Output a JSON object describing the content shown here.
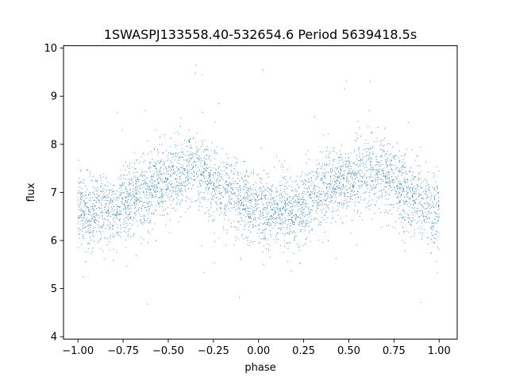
{
  "chart_data": {
    "type": "scatter",
    "title": "1SWASPJ133558.40-532654.6 Period 5639418.5s",
    "xlabel": "phase",
    "ylabel": "flux",
    "xlim": [
      -1.08,
      1.1
    ],
    "ylim": [
      3.95,
      10.05
    ],
    "x_ticks": [
      -1.0,
      -0.75,
      -0.5,
      -0.25,
      0.0,
      0.25,
      0.5,
      0.75,
      1.0
    ],
    "x_tick_labels": [
      "−1.00",
      "−0.75",
      "−0.50",
      "−0.25",
      "0.00",
      "0.25",
      "0.50",
      "0.75",
      "1.00"
    ],
    "y_ticks": [
      4,
      5,
      6,
      7,
      8,
      9,
      10
    ],
    "y_tick_labels": [
      "4",
      "5",
      "6",
      "7",
      "8",
      "9",
      "10"
    ],
    "grid": false,
    "legend": "none",
    "marker_color": "#1f77b4",
    "series": [
      {
        "phase_range": [
          -1.0,
          1.0
        ],
        "profile": [
          {
            "phase": 0.0,
            "flux": 6.65
          },
          {
            "phase": 0.05,
            "flux": 6.6
          },
          {
            "phase": 0.1,
            "flux": 6.65
          },
          {
            "phase": 0.15,
            "flux": 6.7
          },
          {
            "phase": 0.2,
            "flux": 6.6
          },
          {
            "phase": 0.25,
            "flux": 6.75
          },
          {
            "phase": 0.3,
            "flux": 6.9
          },
          {
            "phase": 0.35,
            "flux": 7.0
          },
          {
            "phase": 0.4,
            "flux": 7.1
          },
          {
            "phase": 0.45,
            "flux": 7.2
          },
          {
            "phase": 0.5,
            "flux": 7.3
          },
          {
            "phase": 0.55,
            "flux": 7.3
          },
          {
            "phase": 0.6,
            "flux": 7.45
          },
          {
            "phase": 0.65,
            "flux": 7.5
          },
          {
            "phase": 0.7,
            "flux": 7.3
          },
          {
            "phase": 0.75,
            "flux": 7.2
          },
          {
            "phase": 0.8,
            "flux": 7.05
          },
          {
            "phase": 0.85,
            "flux": 6.9
          },
          {
            "phase": 0.9,
            "flux": 6.8
          },
          {
            "phase": 0.95,
            "flux": 6.7
          },
          {
            "phase": 1.0,
            "flux": 6.65
          }
        ],
        "scatter_sd": 0.38
      }
    ]
  }
}
